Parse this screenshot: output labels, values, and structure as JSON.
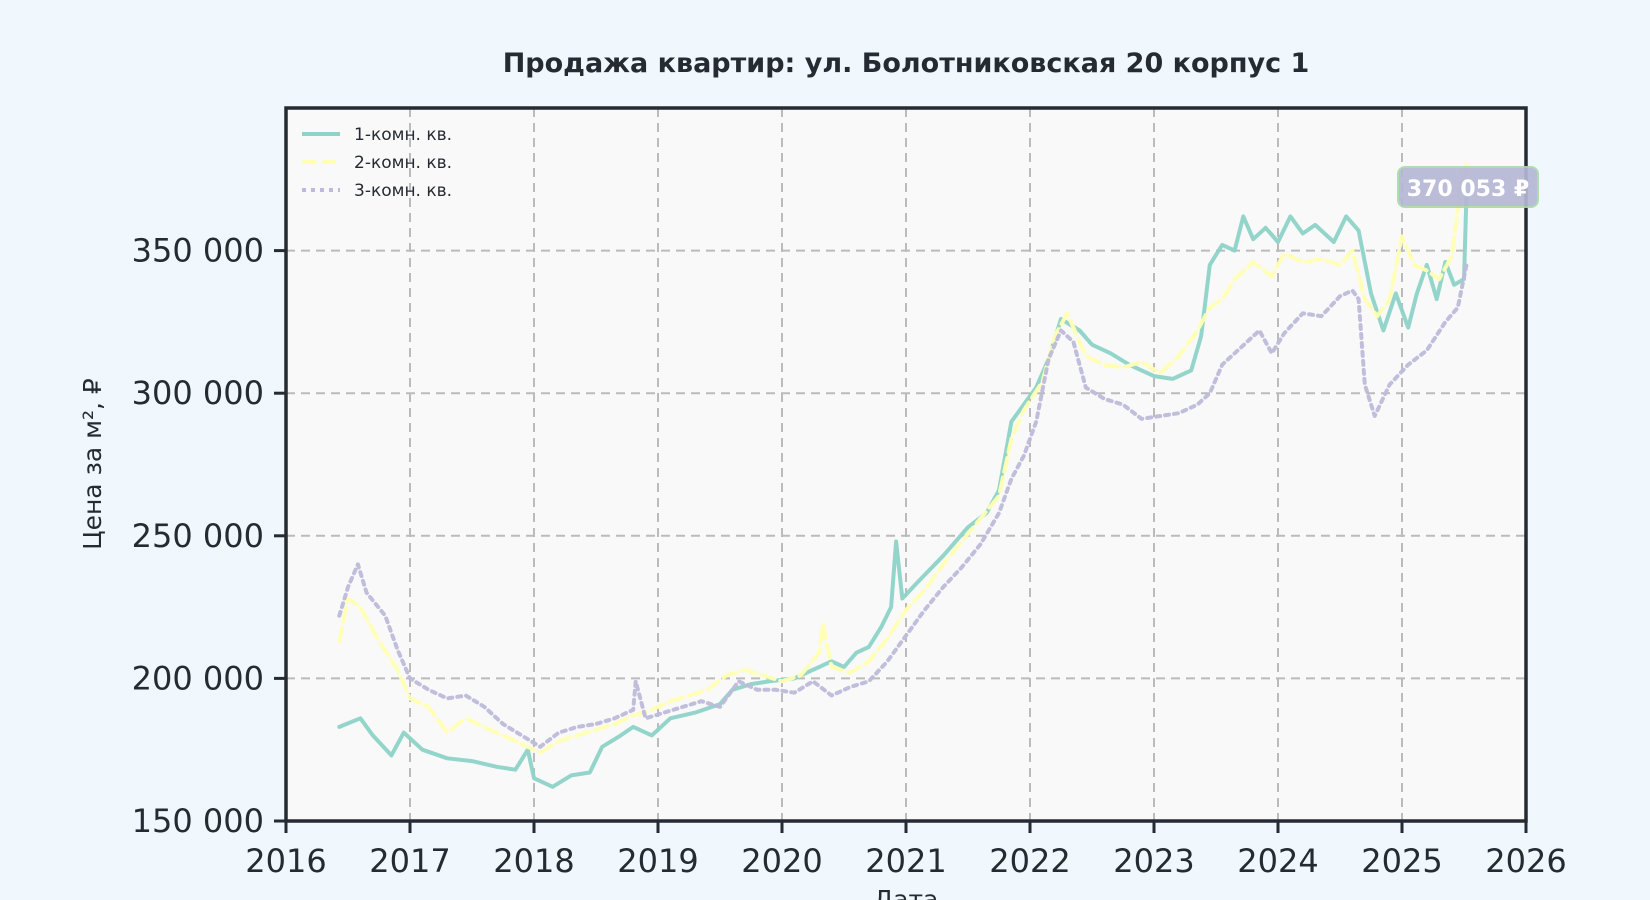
{
  "chart_data": {
    "type": "line",
    "title": "Продажа квартир: ул. Болотниковская 20 корпус 1",
    "xlabel": "Дата",
    "ylabel": "Цена за м², ₽",
    "xlim": [
      2016,
      2026
    ],
    "ylim": [
      150000,
      400000
    ],
    "x_ticks": [
      2016,
      2017,
      2018,
      2019,
      2020,
      2021,
      2022,
      2023,
      2024,
      2025,
      2026
    ],
    "x_tick_labels": [
      "2016",
      "2017",
      "2018",
      "2019",
      "2020",
      "2021",
      "2022",
      "2023",
      "2024",
      "2025",
      "2026"
    ],
    "y_ticks": [
      150000,
      200000,
      250000,
      300000,
      350000
    ],
    "y_tick_labels": [
      "150 000",
      "200 000",
      "250 000",
      "300 000",
      "350 000"
    ],
    "grid": true,
    "legend_position": "top-left",
    "last_value_label": "370 053 ₽",
    "colors": {
      "background": "#f0f7fd",
      "plot_background": "#f9f9f9",
      "grid": "#bbbbbb",
      "axis": "#262b33",
      "badge": "#b5b7d6",
      "badge_border": "#a8dba8"
    },
    "series": [
      {
        "name": "1-комн. кв.",
        "color": "#8dd3c7",
        "dash": "solid",
        "points": [
          [
            2016.43,
            183000
          ],
          [
            2016.6,
            186000
          ],
          [
            2016.7,
            180000
          ],
          [
            2016.85,
            173000
          ],
          [
            2016.95,
            181000
          ],
          [
            2017.1,
            175000
          ],
          [
            2017.3,
            172000
          ],
          [
            2017.5,
            171000
          ],
          [
            2017.7,
            169000
          ],
          [
            2017.85,
            168000
          ],
          [
            2017.95,
            175000
          ],
          [
            2018.0,
            165000
          ],
          [
            2018.15,
            162000
          ],
          [
            2018.3,
            166000
          ],
          [
            2018.45,
            167000
          ],
          [
            2018.55,
            176000
          ],
          [
            2018.7,
            180000
          ],
          [
            2018.8,
            183000
          ],
          [
            2018.95,
            180000
          ],
          [
            2019.1,
            186000
          ],
          [
            2019.3,
            188000
          ],
          [
            2019.5,
            191000
          ],
          [
            2019.6,
            196000
          ],
          [
            2019.75,
            198000
          ],
          [
            2019.9,
            199000
          ],
          [
            2020.1,
            200000
          ],
          [
            2020.25,
            203000
          ],
          [
            2020.4,
            206000
          ],
          [
            2020.5,
            204000
          ],
          [
            2020.6,
            209000
          ],
          [
            2020.7,
            211000
          ],
          [
            2020.8,
            218000
          ],
          [
            2020.88,
            225000
          ],
          [
            2020.92,
            248000
          ],
          [
            2020.97,
            228000
          ],
          [
            2021.1,
            234000
          ],
          [
            2021.3,
            243000
          ],
          [
            2021.5,
            253000
          ],
          [
            2021.65,
            258000
          ],
          [
            2021.75,
            266000
          ],
          [
            2021.85,
            290000
          ],
          [
            2021.95,
            296000
          ],
          [
            2022.05,
            302000
          ],
          [
            2022.15,
            312000
          ],
          [
            2022.25,
            326000
          ],
          [
            2022.4,
            322000
          ],
          [
            2022.5,
            317000
          ],
          [
            2022.65,
            314000
          ],
          [
            2022.8,
            310000
          ],
          [
            2022.9,
            308000
          ],
          [
            2023.0,
            306000
          ],
          [
            2023.15,
            305000
          ],
          [
            2023.3,
            308000
          ],
          [
            2023.38,
            320000
          ],
          [
            2023.45,
            345000
          ],
          [
            2023.55,
            352000
          ],
          [
            2023.65,
            350000
          ],
          [
            2023.72,
            362000
          ],
          [
            2023.8,
            354000
          ],
          [
            2023.9,
            358000
          ],
          [
            2024.0,
            353000
          ],
          [
            2024.1,
            362000
          ],
          [
            2024.2,
            356000
          ],
          [
            2024.3,
            359000
          ],
          [
            2024.45,
            353000
          ],
          [
            2024.55,
            362000
          ],
          [
            2024.65,
            357000
          ],
          [
            2024.75,
            335000
          ],
          [
            2024.85,
            322000
          ],
          [
            2024.95,
            335000
          ],
          [
            2025.05,
            323000
          ],
          [
            2025.12,
            335000
          ],
          [
            2025.2,
            345000
          ],
          [
            2025.28,
            333000
          ],
          [
            2025.35,
            346000
          ],
          [
            2025.42,
            338000
          ],
          [
            2025.5,
            340000
          ],
          [
            2025.52,
            370053
          ]
        ]
      },
      {
        "name": "2-комн. кв.",
        "color": "#ffffb3",
        "dash": "dashed",
        "points": [
          [
            2016.43,
            213000
          ],
          [
            2016.5,
            228000
          ],
          [
            2016.6,
            225000
          ],
          [
            2016.75,
            213000
          ],
          [
            2016.9,
            203000
          ],
          [
            2017.0,
            193000
          ],
          [
            2017.15,
            190000
          ],
          [
            2017.3,
            181000
          ],
          [
            2017.45,
            186000
          ],
          [
            2017.6,
            183000
          ],
          [
            2017.75,
            180000
          ],
          [
            2017.9,
            177000
          ],
          [
            2018.05,
            174000
          ],
          [
            2018.2,
            178000
          ],
          [
            2018.35,
            180000
          ],
          [
            2018.5,
            182000
          ],
          [
            2018.65,
            184000
          ],
          [
            2018.8,
            187000
          ],
          [
            2018.95,
            189000
          ],
          [
            2019.1,
            192000
          ],
          [
            2019.25,
            194000
          ],
          [
            2019.4,
            196000
          ],
          [
            2019.55,
            201000
          ],
          [
            2019.7,
            203000
          ],
          [
            2019.85,
            201000
          ],
          [
            2020.0,
            199000
          ],
          [
            2020.15,
            201000
          ],
          [
            2020.3,
            209000
          ],
          [
            2020.33,
            219000
          ],
          [
            2020.4,
            204000
          ],
          [
            2020.55,
            202000
          ],
          [
            2020.7,
            206000
          ],
          [
            2020.85,
            214000
          ],
          [
            2021.0,
            224000
          ],
          [
            2021.15,
            231000
          ],
          [
            2021.3,
            240000
          ],
          [
            2021.45,
            248000
          ],
          [
            2021.6,
            256000
          ],
          [
            2021.75,
            264000
          ],
          [
            2021.85,
            284000
          ],
          [
            2021.95,
            294000
          ],
          [
            2022.1,
            304000
          ],
          [
            2022.2,
            320000
          ],
          [
            2022.3,
            328000
          ],
          [
            2022.45,
            313000
          ],
          [
            2022.6,
            310000
          ],
          [
            2022.75,
            309000
          ],
          [
            2022.9,
            311000
          ],
          [
            2023.05,
            307000
          ],
          [
            2023.2,
            313000
          ],
          [
            2023.35,
            322000
          ],
          [
            2023.45,
            330000
          ],
          [
            2023.55,
            333000
          ],
          [
            2023.65,
            340000
          ],
          [
            2023.8,
            346000
          ],
          [
            2023.95,
            341000
          ],
          [
            2024.05,
            349000
          ],
          [
            2024.2,
            346000
          ],
          [
            2024.35,
            347000
          ],
          [
            2024.5,
            345000
          ],
          [
            2024.6,
            350000
          ],
          [
            2024.7,
            333000
          ],
          [
            2024.8,
            327000
          ],
          [
            2024.9,
            333000
          ],
          [
            2025.0,
            355000
          ],
          [
            2025.1,
            345000
          ],
          [
            2025.2,
            343000
          ],
          [
            2025.3,
            340000
          ],
          [
            2025.4,
            348000
          ],
          [
            2025.48,
            374000
          ],
          [
            2025.52,
            380000
          ]
        ]
      },
      {
        "name": "3-комн. кв.",
        "color": "#bebada",
        "dash": "dotted",
        "points": [
          [
            2016.43,
            222000
          ],
          [
            2016.5,
            232000
          ],
          [
            2016.58,
            240000
          ],
          [
            2016.65,
            230000
          ],
          [
            2016.8,
            222000
          ],
          [
            2016.9,
            210000
          ],
          [
            2017.0,
            200000
          ],
          [
            2017.15,
            196000
          ],
          [
            2017.3,
            193000
          ],
          [
            2017.45,
            194000
          ],
          [
            2017.6,
            190000
          ],
          [
            2017.75,
            184000
          ],
          [
            2017.9,
            180000
          ],
          [
            2018.05,
            176000
          ],
          [
            2018.2,
            181000
          ],
          [
            2018.35,
            183000
          ],
          [
            2018.5,
            184000
          ],
          [
            2018.65,
            186000
          ],
          [
            2018.8,
            189000
          ],
          [
            2018.82,
            199000
          ],
          [
            2018.9,
            186000
          ],
          [
            2019.05,
            188000
          ],
          [
            2019.2,
            190000
          ],
          [
            2019.35,
            192000
          ],
          [
            2019.5,
            190000
          ],
          [
            2019.65,
            199000
          ],
          [
            2019.8,
            196000
          ],
          [
            2019.95,
            196000
          ],
          [
            2020.1,
            195000
          ],
          [
            2020.25,
            199000
          ],
          [
            2020.4,
            194000
          ],
          [
            2020.55,
            197000
          ],
          [
            2020.7,
            199000
          ],
          [
            2020.85,
            206000
          ],
          [
            2021.0,
            215000
          ],
          [
            2021.15,
            224000
          ],
          [
            2021.3,
            232000
          ],
          [
            2021.45,
            239000
          ],
          [
            2021.6,
            247000
          ],
          [
            2021.75,
            258000
          ],
          [
            2021.85,
            270000
          ],
          [
            2021.95,
            278000
          ],
          [
            2022.05,
            290000
          ],
          [
            2022.15,
            312000
          ],
          [
            2022.25,
            322000
          ],
          [
            2022.35,
            318000
          ],
          [
            2022.45,
            302000
          ],
          [
            2022.6,
            298000
          ],
          [
            2022.75,
            296000
          ],
          [
            2022.9,
            291000
          ],
          [
            2023.05,
            292000
          ],
          [
            2023.2,
            293000
          ],
          [
            2023.35,
            296000
          ],
          [
            2023.45,
            300000
          ],
          [
            2023.55,
            310000
          ],
          [
            2023.7,
            316000
          ],
          [
            2023.85,
            322000
          ],
          [
            2023.95,
            314000
          ],
          [
            2024.05,
            321000
          ],
          [
            2024.2,
            328000
          ],
          [
            2024.35,
            327000
          ],
          [
            2024.5,
            334000
          ],
          [
            2024.6,
            336000
          ],
          [
            2024.65,
            333000
          ],
          [
            2024.7,
            303000
          ],
          [
            2024.78,
            292000
          ],
          [
            2024.9,
            303000
          ],
          [
            2025.05,
            310000
          ],
          [
            2025.2,
            315000
          ],
          [
            2025.35,
            325000
          ],
          [
            2025.45,
            330000
          ],
          [
            2025.52,
            345000
          ]
        ]
      }
    ]
  }
}
